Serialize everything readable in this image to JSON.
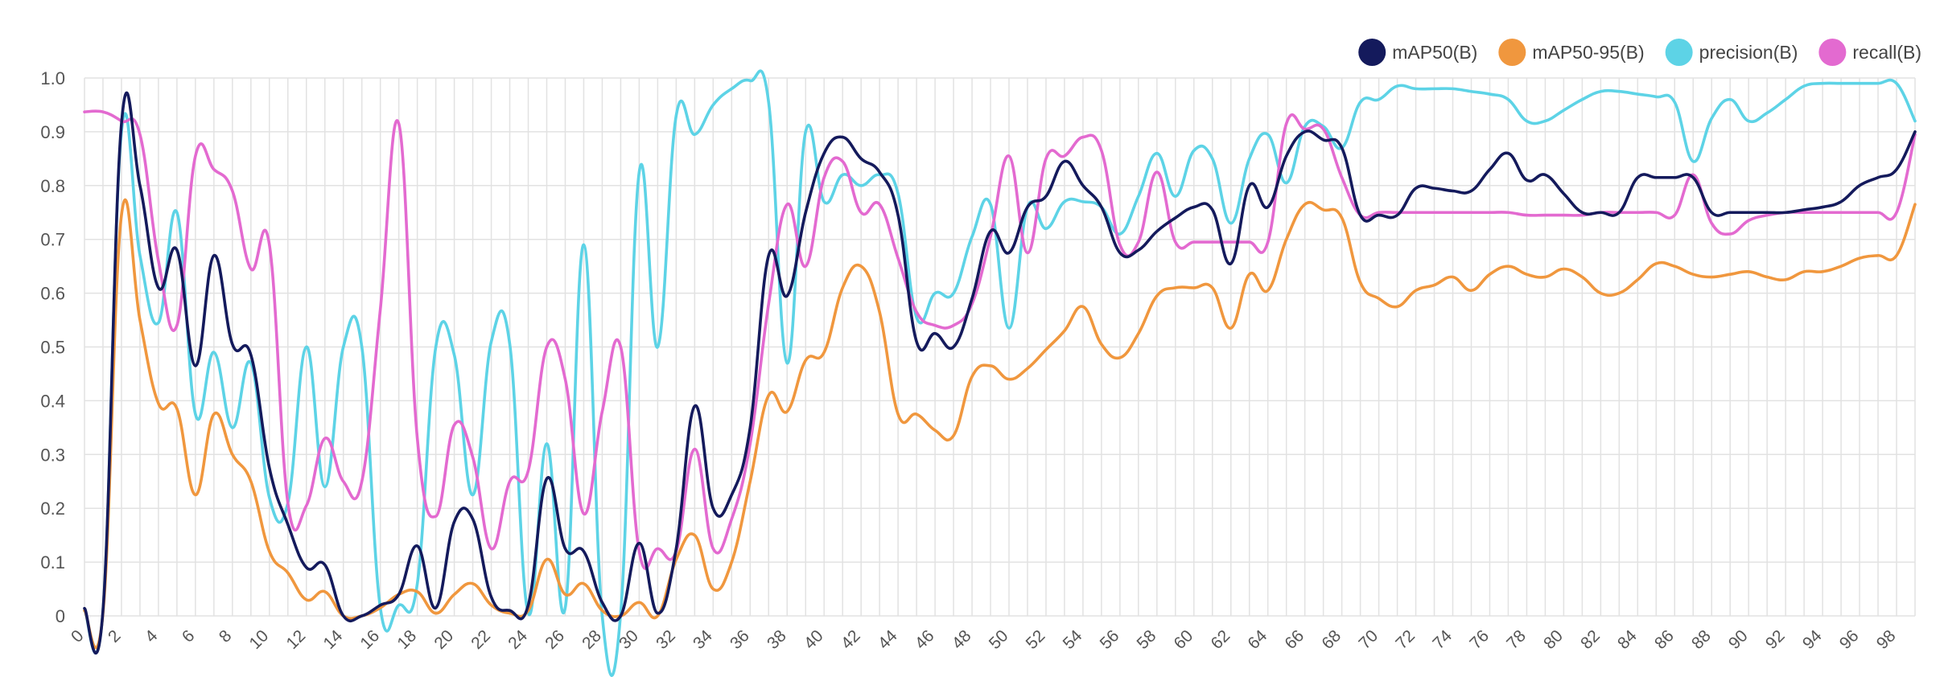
{
  "chart_data": {
    "type": "line",
    "title": "",
    "xlabel": "",
    "ylabel": "",
    "xlim": [
      0,
      99
    ],
    "ylim": [
      0,
      1.0
    ],
    "x_ticks": [
      0,
      2,
      4,
      6,
      8,
      10,
      12,
      14,
      16,
      18,
      20,
      22,
      24,
      26,
      28,
      30,
      32,
      34,
      36,
      38,
      40,
      42,
      44,
      46,
      48,
      50,
      52,
      54,
      56,
      58,
      60,
      62,
      64,
      66,
      68,
      70,
      72,
      74,
      76,
      78,
      80,
      82,
      84,
      86,
      88,
      90,
      92,
      94,
      96,
      98
    ],
    "y_ticks": [
      {
        "v": 0,
        "label": "0"
      },
      {
        "v": 0.1,
        "label": "0.1"
      },
      {
        "v": 0.2,
        "label": "0.2"
      },
      {
        "v": 0.3,
        "label": "0.3"
      },
      {
        "v": 0.4,
        "label": "0.4"
      },
      {
        "v": 0.5,
        "label": "0.5"
      },
      {
        "v": 0.6,
        "label": "0.6"
      },
      {
        "v": 0.7,
        "label": "0.7"
      },
      {
        "v": 0.8,
        "label": "0.8"
      },
      {
        "v": 0.9,
        "label": "0.9"
      },
      {
        "v": 1.0,
        "label": "1.0"
      }
    ],
    "grid": true,
    "legend": "top-right",
    "x": [
      0,
      1,
      2,
      3,
      4,
      5,
      6,
      7,
      8,
      9,
      10,
      11,
      12,
      13,
      14,
      15,
      16,
      17,
      18,
      19,
      20,
      21,
      22,
      23,
      24,
      25,
      26,
      27,
      28,
      29,
      30,
      31,
      32,
      33,
      34,
      35,
      36,
      37,
      38,
      39,
      40,
      41,
      42,
      43,
      44,
      45,
      46,
      47,
      48,
      49,
      50,
      51,
      52,
      53,
      54,
      55,
      56,
      57,
      58,
      59,
      60,
      61,
      62,
      63,
      64,
      65,
      66,
      67,
      68,
      69,
      70,
      71,
      72,
      73,
      74,
      75,
      76,
      77,
      78,
      79,
      80,
      81,
      82,
      83,
      84,
      85,
      86,
      87,
      88,
      89,
      90,
      91,
      92,
      93,
      94,
      95,
      96,
      97,
      98,
      99
    ],
    "series": [
      {
        "name": "mAP50(B)",
        "color": "#141a5c",
        "values": [
          0.014,
          0.01,
          0.915,
          0.8,
          0.61,
          0.68,
          0.465,
          0.67,
          0.505,
          0.485,
          0.275,
          0.17,
          0.09,
          0.095,
          0.0,
          0.0,
          0.02,
          0.04,
          0.13,
          0.015,
          0.175,
          0.18,
          0.035,
          0.01,
          0.02,
          0.255,
          0.125,
          0.12,
          0.025,
          0.0,
          0.135,
          0.005,
          0.125,
          0.39,
          0.2,
          0.225,
          0.35,
          0.67,
          0.595,
          0.75,
          0.86,
          0.89,
          0.85,
          0.825,
          0.745,
          0.51,
          0.525,
          0.5,
          0.59,
          0.715,
          0.675,
          0.76,
          0.78,
          0.845,
          0.8,
          0.76,
          0.675,
          0.68,
          0.715,
          0.74,
          0.76,
          0.755,
          0.655,
          0.8,
          0.76,
          0.855,
          0.9,
          0.885,
          0.87,
          0.745,
          0.745,
          0.745,
          0.795,
          0.795,
          0.79,
          0.79,
          0.83,
          0.86,
          0.81,
          0.82,
          0.785,
          0.75,
          0.75,
          0.75,
          0.815,
          0.815,
          0.815,
          0.815,
          0.75,
          0.75,
          0.75,
          0.75,
          0.75,
          0.755,
          0.76,
          0.77,
          0.8,
          0.815,
          0.83,
          0.9
        ]
      },
      {
        "name": "mAP50-95(B)",
        "color": "#f0973e",
        "values": [
          0.01,
          0.005,
          0.745,
          0.55,
          0.395,
          0.385,
          0.225,
          0.375,
          0.3,
          0.25,
          0.12,
          0.08,
          0.03,
          0.045,
          0.0,
          0.0,
          0.015,
          0.04,
          0.045,
          0.005,
          0.04,
          0.06,
          0.02,
          0.005,
          0.01,
          0.105,
          0.04,
          0.06,
          0.01,
          0.0,
          0.025,
          0.0,
          0.105,
          0.15,
          0.05,
          0.1,
          0.25,
          0.41,
          0.38,
          0.475,
          0.49,
          0.61,
          0.65,
          0.565,
          0.375,
          0.375,
          0.345,
          0.335,
          0.445,
          0.465,
          0.44,
          0.46,
          0.495,
          0.53,
          0.575,
          0.505,
          0.48,
          0.525,
          0.595,
          0.61,
          0.61,
          0.61,
          0.535,
          0.635,
          0.605,
          0.7,
          0.765,
          0.755,
          0.74,
          0.62,
          0.59,
          0.575,
          0.605,
          0.615,
          0.63,
          0.605,
          0.635,
          0.65,
          0.635,
          0.63,
          0.645,
          0.63,
          0.6,
          0.6,
          0.625,
          0.655,
          0.65,
          0.635,
          0.63,
          0.635,
          0.64,
          0.63,
          0.625,
          0.64,
          0.64,
          0.65,
          0.665,
          0.67,
          0.67,
          0.765
        ]
      },
      {
        "name": "precision(B)",
        "color": "#5dd3e6",
        "values": [
          0.01,
          0.01,
          0.9,
          0.67,
          0.545,
          0.75,
          0.375,
          0.49,
          0.35,
          0.47,
          0.22,
          0.21,
          0.5,
          0.24,
          0.5,
          0.5,
          0.015,
          0.02,
          0.06,
          0.5,
          0.485,
          0.225,
          0.51,
          0.505,
          0.005,
          0.32,
          0.015,
          0.69,
          0.0,
          0.005,
          0.825,
          0.5,
          0.93,
          0.895,
          0.95,
          0.98,
          0.995,
          0.955,
          0.47,
          0.9,
          0.77,
          0.82,
          0.8,
          0.82,
          0.785,
          0.555,
          0.6,
          0.6,
          0.705,
          0.765,
          0.535,
          0.76,
          0.72,
          0.77,
          0.77,
          0.76,
          0.71,
          0.78,
          0.86,
          0.78,
          0.865,
          0.85,
          0.73,
          0.85,
          0.895,
          0.805,
          0.91,
          0.91,
          0.87,
          0.955,
          0.96,
          0.985,
          0.98,
          0.98,
          0.98,
          0.975,
          0.97,
          0.96,
          0.92,
          0.92,
          0.94,
          0.96,
          0.975,
          0.975,
          0.97,
          0.965,
          0.955,
          0.845,
          0.925,
          0.96,
          0.92,
          0.935,
          0.96,
          0.985,
          0.99,
          0.99,
          0.99,
          0.99,
          0.99,
          0.92
        ]
      },
      {
        "name": "recall(B)",
        "color": "#e36ad0",
        "values": [
          0.937,
          0.937,
          0.92,
          0.895,
          0.66,
          0.54,
          0.855,
          0.83,
          0.79,
          0.645,
          0.69,
          0.21,
          0.205,
          0.33,
          0.25,
          0.25,
          0.57,
          0.915,
          0.33,
          0.185,
          0.355,
          0.295,
          0.125,
          0.25,
          0.27,
          0.5,
          0.44,
          0.19,
          0.38,
          0.5,
          0.12,
          0.125,
          0.12,
          0.31,
          0.125,
          0.18,
          0.32,
          0.58,
          0.765,
          0.65,
          0.815,
          0.845,
          0.75,
          0.765,
          0.665,
          0.565,
          0.54,
          0.54,
          0.58,
          0.705,
          0.855,
          0.675,
          0.85,
          0.855,
          0.89,
          0.865,
          0.69,
          0.695,
          0.825,
          0.695,
          0.695,
          0.695,
          0.695,
          0.695,
          0.695,
          0.915,
          0.905,
          0.905,
          0.815,
          0.745,
          0.75,
          0.75,
          0.75,
          0.75,
          0.75,
          0.75,
          0.75,
          0.75,
          0.745,
          0.745,
          0.745,
          0.745,
          0.75,
          0.75,
          0.75,
          0.75,
          0.745,
          0.82,
          0.73,
          0.71,
          0.735,
          0.745,
          0.75,
          0.75,
          0.75,
          0.75,
          0.75,
          0.75,
          0.75,
          0.895
        ]
      }
    ]
  }
}
